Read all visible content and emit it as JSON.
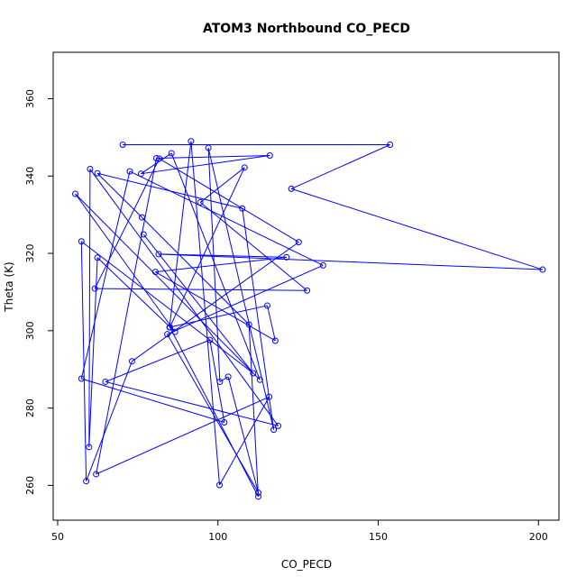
{
  "chart_data": {
    "type": "line",
    "title": "ATOM3 Northbound CO_PECD",
    "xlabel": "CO_PECD",
    "ylabel": "Theta (K)",
    "xlim": [
      48.6,
      206.4
    ],
    "ylim": [
      251.0,
      372.0
    ],
    "xticks": [
      50,
      100,
      150,
      200
    ],
    "yticks": [
      260,
      280,
      300,
      320,
      340,
      360
    ],
    "grid": false,
    "legend": "none",
    "marker": "open-circle",
    "color": "#0000ff",
    "points": [
      [
        70.3,
        348.1
      ],
      [
        153.7,
        348.1
      ],
      [
        122.9,
        336.7
      ],
      [
        201.3,
        315.8
      ],
      [
        81.5,
        319.8
      ],
      [
        121.4,
        319.0
      ],
      [
        80.5,
        315.2
      ],
      [
        117.9,
        297.4
      ],
      [
        115.4,
        306.5
      ],
      [
        84.9,
        300.9
      ],
      [
        91.6,
        349.0
      ],
      [
        100.5,
        260.1
      ],
      [
        116.0,
        282.9
      ],
      [
        62.0,
        262.9
      ],
      [
        80.8,
        344.6
      ],
      [
        116.2,
        345.3
      ],
      [
        76.0,
        340.6
      ],
      [
        85.5,
        345.9
      ],
      [
        113.1,
        287.3
      ],
      [
        55.5,
        335.4
      ],
      [
        86.6,
        299.7
      ],
      [
        62.4,
        318.9
      ],
      [
        59.8,
        269.9
      ],
      [
        60.1,
        341.8
      ],
      [
        118.8,
        275.4
      ],
      [
        64.9,
        286.8
      ],
      [
        97.5,
        297.6
      ],
      [
        102.0,
        276.3
      ],
      [
        57.4,
        287.6
      ],
      [
        72.5,
        341.2
      ],
      [
        132.8,
        316.9
      ],
      [
        84.2,
        299.1
      ],
      [
        112.6,
        258.1
      ],
      [
        103.2,
        288.1
      ],
      [
        100.6,
        286.8
      ],
      [
        97.0,
        347.3
      ],
      [
        117.4,
        274.4
      ],
      [
        107.6,
        331.6
      ],
      [
        62.4,
        340.7
      ],
      [
        76.3,
        329.3
      ],
      [
        109.7,
        301.6
      ],
      [
        112.6,
        257.1
      ],
      [
        85.0,
        300.9
      ],
      [
        108.3,
        342.2
      ],
      [
        94.5,
        333.2
      ],
      [
        127.8,
        310.4
      ],
      [
        61.6,
        310.9
      ],
      [
        81.7,
        344.5
      ],
      [
        125.2,
        322.9
      ],
      [
        73.2,
        292.1
      ],
      [
        58.9,
        261.1
      ],
      [
        57.4,
        323.1
      ],
      [
        111.0,
        289.0
      ],
      [
        76.8,
        324.9
      ]
    ]
  }
}
